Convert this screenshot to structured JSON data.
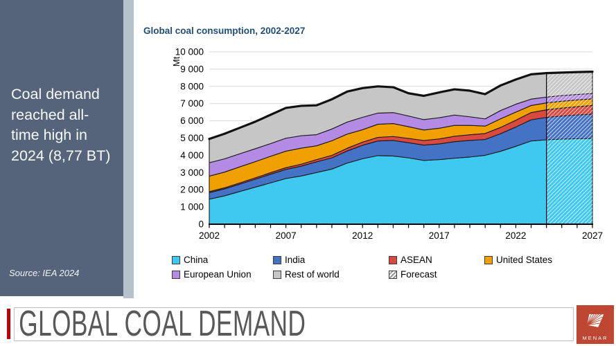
{
  "slide": {
    "sidebar": {
      "headline": "Coal demand reached all-time high in 2024 (8,77 BT)",
      "source": "Source: IEA 2024"
    },
    "footer": {
      "title": "GLOBAL COAL DEMAND",
      "logo_text": "MENAR"
    },
    "colors": {
      "sidebar_bg": "#55647A",
      "sidebar_strip": "#B6C2CB",
      "title_blue": "#1F4E79",
      "footer_text": "#595959",
      "accent_red": "#C00000",
      "logo_red": "#BE4733"
    }
  },
  "chart_data": {
    "type": "area",
    "stacked": true,
    "title": "Global coal consumption, 2002-2027",
    "ylabel": "Mt",
    "ylim": [
      0,
      10000
    ],
    "grid": "horizontal",
    "legend_position": "bottom",
    "x": [
      2002,
      2003,
      2004,
      2005,
      2006,
      2007,
      2008,
      2009,
      2010,
      2011,
      2012,
      2013,
      2014,
      2015,
      2016,
      2017,
      2018,
      2019,
      2020,
      2021,
      2022,
      2023,
      2024,
      2025,
      2026,
      2027
    ],
    "x_tick_labels": [
      "2002",
      "2007",
      "2012",
      "2017",
      "2022",
      "2027"
    ],
    "x_tick_values": [
      2002,
      2007,
      2012,
      2017,
      2022,
      2027
    ],
    "y_tick_labels": [
      "0",
      "1 000",
      "2 000",
      "3 000",
      "4 000",
      "5 000",
      "6 000",
      "7 000",
      "8 000",
      "9 000",
      "10 000"
    ],
    "y_tick_values": [
      0,
      1000,
      2000,
      3000,
      4000,
      5000,
      6000,
      7000,
      8000,
      9000,
      10000
    ],
    "forecast_start": 2024,
    "forecast_label": "Forecast",
    "total_line_color": "#111111",
    "band_outline_color": "#1A1A1A",
    "grid_color": "#D9D9D9",
    "series": [
      {
        "name": "China",
        "color": "#3FC8F0",
        "values": [
          1450,
          1650,
          1900,
          2150,
          2400,
          2650,
          2800,
          3000,
          3200,
          3550,
          3800,
          3980,
          3960,
          3850,
          3700,
          3750,
          3830,
          3900,
          4000,
          4230,
          4520,
          4830,
          4900,
          4940,
          4960,
          4980
        ]
      },
      {
        "name": "India",
        "color": "#4472C4",
        "values": [
          380,
          400,
          430,
          460,
          500,
          530,
          570,
          620,
          650,
          700,
          780,
          850,
          900,
          880,
          890,
          910,
          960,
          960,
          920,
          1020,
          1120,
          1230,
          1300,
          1340,
          1380,
          1410
        ]
      },
      {
        "name": "ASEAN",
        "color": "#D9493F",
        "values": [
          60,
          65,
          70,
          80,
          90,
          100,
          115,
          130,
          145,
          160,
          185,
          210,
          230,
          250,
          270,
          290,
          315,
          335,
          345,
          365,
          395,
          420,
          440,
          460,
          480,
          500
        ]
      },
      {
        "name": "United States",
        "color": "#F0A000",
        "values": [
          900,
          910,
          930,
          940,
          950,
          960,
          930,
          800,
          850,
          820,
          720,
          760,
          750,
          680,
          610,
          620,
          630,
          540,
          430,
          500,
          470,
          410,
          400,
          395,
          390,
          385
        ]
      },
      {
        "name": "European Union",
        "color": "#B38BE2",
        "values": [
          780,
          770,
          760,
          750,
          740,
          750,
          720,
          650,
          680,
          700,
          720,
          650,
          640,
          620,
          600,
          610,
          600,
          500,
          420,
          480,
          460,
          370,
          340,
          330,
          320,
          310
        ]
      },
      {
        "name": "Rest of world",
        "color": "#C6C6C6",
        "values": [
          1380,
          1455,
          1510,
          1570,
          1670,
          1760,
          1735,
          1700,
          1725,
          1770,
          1695,
          1550,
          1470,
          1320,
          1380,
          1470,
          1495,
          1515,
          1435,
          1455,
          1435,
          1440,
          1390,
          1335,
          1300,
          1265
        ]
      }
    ]
  }
}
